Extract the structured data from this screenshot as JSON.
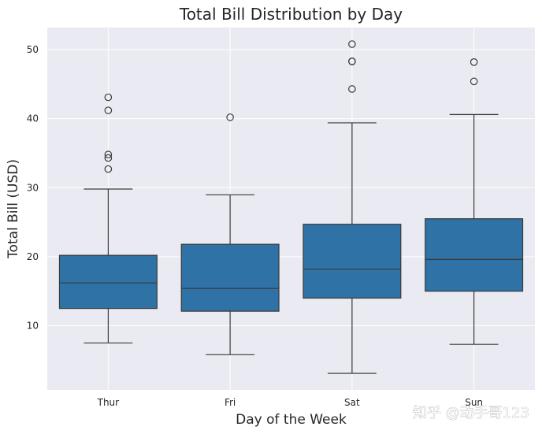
{
  "chart_data": {
    "type": "box",
    "title": "Total Bill Distribution by Day",
    "xlabel": "Day of the Week",
    "ylabel": "Total Bill (USD)",
    "categories": [
      "Thur",
      "Fri",
      "Sat",
      "Sun"
    ],
    "ylim": [
      0.7,
      53.2
    ],
    "yticks": [
      10,
      20,
      30,
      40,
      50
    ],
    "grid": true,
    "box_color": "#2f72a6",
    "line_color": "#3a3a3a",
    "background_color": "#eaeaf2",
    "boxes": [
      {
        "category": "Thur",
        "whisker_low": 7.5,
        "q1": 12.5,
        "median": 16.2,
        "q3": 20.2,
        "whisker_high": 29.8,
        "outliers": [
          32.7,
          34.3,
          34.8,
          41.2,
          43.1
        ]
      },
      {
        "category": "Fri",
        "whisker_low": 5.8,
        "q1": 12.1,
        "median": 15.4,
        "q3": 21.8,
        "whisker_high": 28.97,
        "outliers": [
          40.2
        ]
      },
      {
        "category": "Sat",
        "whisker_low": 3.1,
        "q1": 14.0,
        "median": 18.2,
        "q3": 24.7,
        "whisker_high": 39.4,
        "outliers": [
          44.3,
          48.3,
          48.3,
          50.8
        ]
      },
      {
        "category": "Sun",
        "whisker_low": 7.3,
        "q1": 15.0,
        "median": 19.6,
        "q3": 25.5,
        "whisker_high": 40.6,
        "outliers": [
          45.4,
          48.2
        ]
      }
    ]
  },
  "watermark": "知乎 @动手哥123"
}
